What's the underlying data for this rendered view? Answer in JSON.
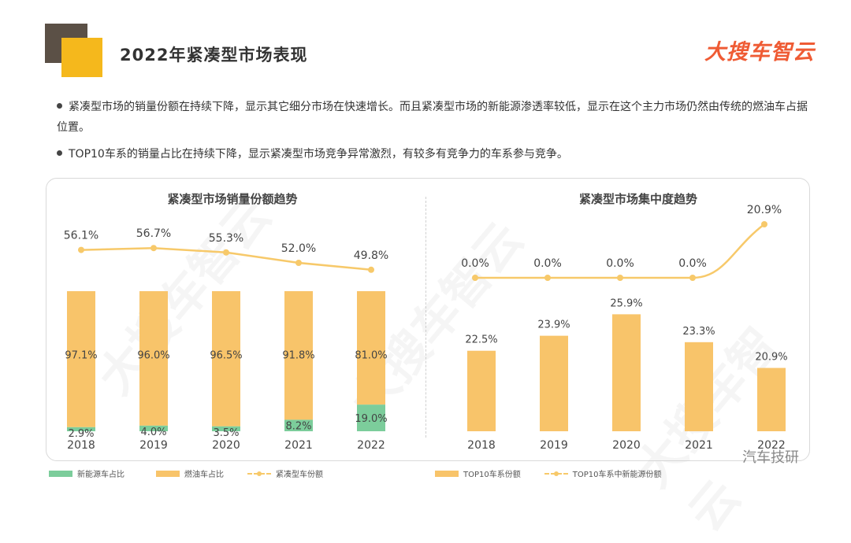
{
  "header": {
    "title": "2022年紧凑型市场表现",
    "brand": "大搜车智云"
  },
  "bullets": [
    "紧凑型市场的销量份额在持续下降，显示其它细分市场在快速增长。而且紧凑型市场的新能源渗透率较低，显示在这个主力市场仍然由传统的燃油车占据位置。",
    "TOP10车系的销量占比在持续下降，显示紧凑型市场竞争异常激烈，有较多有竞争力的车系参与竞争。"
  ],
  "watermark": "大搜车智云",
  "footer_tag": "汽车技研",
  "colors": {
    "fuel": "#f8c46a",
    "nev": "#7ccd9b",
    "line": "#f7c96a",
    "accent": "#ef5b34"
  },
  "chart_data": [
    {
      "type": "bar",
      "title": "紧凑型市场销量份额趋势",
      "categories": [
        "2018",
        "2019",
        "2020",
        "2021",
        "2022"
      ],
      "stacked": true,
      "series": [
        {
          "name": "新能源车占比",
          "values": [
            2.9,
            4.0,
            3.5,
            8.2,
            19.0
          ],
          "labels": [
            "2.9%",
            "4.0%",
            "3.5%",
            "8.2%",
            "19.0%"
          ]
        },
        {
          "name": "燃油车占比",
          "values": [
            97.1,
            96.0,
            96.5,
            91.8,
            81.0
          ],
          "labels": [
            "97.1%",
            "96.0%",
            "96.5%",
            "91.8%",
            "81.0%"
          ]
        },
        {
          "name": "紧凑型车份额",
          "kind": "line",
          "values": [
            56.1,
            56.7,
            55.3,
            52.0,
            49.8
          ],
          "labels": [
            "56.1%",
            "56.7%",
            "55.3%",
            "52.0%",
            "49.8%"
          ]
        }
      ],
      "legend": [
        "新能源车占比",
        "燃油车占比",
        "紧凑型车份额"
      ]
    },
    {
      "type": "bar",
      "title": "紧凑型市场集中度趋势",
      "categories": [
        "2018",
        "2019",
        "2020",
        "2021",
        "2022"
      ],
      "series": [
        {
          "name": "TOP10车系份额",
          "values": [
            22.5,
            23.9,
            25.9,
            23.3,
            20.9
          ],
          "labels": [
            "22.5%",
            "23.9%",
            "25.9%",
            "23.3%",
            "20.9%"
          ]
        },
        {
          "name": "TOP10车系中新能源份额",
          "kind": "line",
          "values": [
            0.0,
            0.0,
            0.0,
            0.0,
            20.9
          ],
          "labels": [
            "0.0%",
            "0.0%",
            "0.0%",
            "0.0%",
            "20.9%"
          ]
        }
      ],
      "legend": [
        "TOP10车系份额",
        "TOP10车系中新能源份额"
      ]
    }
  ]
}
